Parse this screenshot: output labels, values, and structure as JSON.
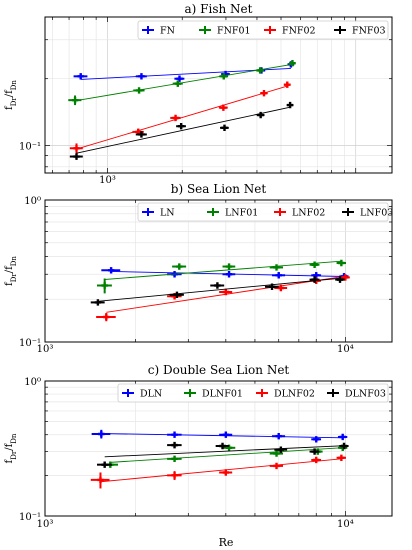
{
  "figure": {
    "shared_xlabel": "Re"
  },
  "chart_data": [
    {
      "type": "scatter",
      "title": "a) Fish Net",
      "xlabel": "",
      "ylabel": "f_Dr/f_Dn",
      "xscale": "log",
      "yscale": "log",
      "xlim": [
        560,
        14000
      ],
      "ylim": [
        0.075,
        0.38
      ],
      "x_tick_labels": [
        {
          "value": 1000,
          "label": "10³"
        }
      ],
      "y_tick_labels": [
        {
          "value": 0.1,
          "label": "10⁻¹"
        }
      ],
      "grid": true,
      "legend_position": "top",
      "series": [
        {
          "name": "FN",
          "color": "#0000ff",
          "fit": true,
          "x": [
            780,
            1370,
            1950,
            2990,
            4170,
            5480
          ],
          "y": [
            0.205,
            0.205,
            0.2,
            0.21,
            0.218,
            0.232
          ],
          "xerr": [
            50,
            70,
            90,
            120,
            150,
            170
          ],
          "yerr": [
            0.004,
            0.004,
            0.004,
            0.004,
            0.005,
            0.005
          ]
        },
        {
          "name": "FNF01",
          "color": "#008000",
          "fit": true,
          "x": [
            740,
            1340,
            1920,
            2940,
            4120,
            5560
          ],
          "y": [
            0.16,
            0.177,
            0.19,
            0.205,
            0.218,
            0.235
          ],
          "xerr": [
            45,
            70,
            90,
            120,
            150,
            170
          ],
          "yerr": [
            0.008,
            0.005,
            0.005,
            0.005,
            0.005,
            0.005
          ]
        },
        {
          "name": "FNF02",
          "color": "#ff0000",
          "fit": true,
          "x": [
            750,
            1330,
            1880,
            2930,
            4270,
            5300
          ],
          "y": [
            0.097,
            0.115,
            0.133,
            0.148,
            0.172,
            0.188
          ],
          "xerr": [
            45,
            70,
            90,
            120,
            150,
            170
          ],
          "yerr": [
            0.005,
            0.004,
            0.004,
            0.004,
            0.004,
            0.004
          ]
        },
        {
          "name": "FNF03",
          "color": "#000000",
          "fit": true,
          "x": [
            750,
            1370,
            1980,
            2960,
            4140,
            5440
          ],
          "y": [
            0.089,
            0.112,
            0.122,
            0.12,
            0.137,
            0.152
          ],
          "xerr": [
            45,
            70,
            90,
            120,
            150,
            170
          ],
          "yerr": [
            0.003,
            0.003,
            0.003,
            0.003,
            0.003,
            0.003
          ]
        }
      ]
    },
    {
      "type": "scatter",
      "title": "b) Sea Lion Net",
      "xlabel": "",
      "ylabel": "f_Dr/f_Dn",
      "xscale": "log",
      "yscale": "log",
      "xlim": [
        1000,
        14300
      ],
      "ylim": [
        0.1,
        1.0
      ],
      "x_tick_labels": [
        {
          "value": 1000,
          "label": "10³"
        },
        {
          "value": 10000,
          "label": "10⁴"
        }
      ],
      "y_tick_labels": [
        {
          "value": 0.1,
          "label": "10⁻¹"
        },
        {
          "value": 1.0,
          "label": "10⁰"
        }
      ],
      "grid": true,
      "legend_position": "top",
      "series": [
        {
          "name": "LN",
          "color": "#0000ff",
          "fit": true,
          "x": [
            1660,
            2700,
            4100,
            6000,
            8000,
            9900
          ],
          "y": [
            0.32,
            0.3,
            0.3,
            0.295,
            0.295,
            0.29
          ],
          "xerr": [
            120,
            150,
            200,
            300,
            300,
            350
          ],
          "yerr": [
            0.015,
            0.01,
            0.01,
            0.015,
            0.015,
            0.015
          ]
        },
        {
          "name": "LNF01",
          "color": "#008000",
          "fit": true,
          "x": [
            1580,
            2800,
            4100,
            5900,
            7900,
            9700
          ],
          "y": [
            0.25,
            0.34,
            0.34,
            0.335,
            0.35,
            0.36
          ],
          "xerr": [
            90,
            150,
            200,
            300,
            300,
            350
          ],
          "yerr": [
            0.03,
            0.015,
            0.01,
            0.01,
            0.01,
            0.01
          ]
        },
        {
          "name": "LNF02",
          "color": "#ff0000",
          "fit": true,
          "x": [
            1600,
            2700,
            4000,
            6100,
            8000,
            10000
          ],
          "y": [
            0.15,
            0.21,
            0.225,
            0.24,
            0.27,
            0.285
          ],
          "xerr": [
            120,
            150,
            200,
            300,
            300,
            350
          ],
          "yerr": [
            0.01,
            0.01,
            0.01,
            0.01,
            0.01,
            0.01
          ]
        },
        {
          "name": "LNF03",
          "color": "#000000",
          "fit": true,
          "x": [
            1500,
            2750,
            3750,
            5700,
            7900,
            9600
          ],
          "y": [
            0.19,
            0.215,
            0.25,
            0.245,
            0.275,
            0.275
          ],
          "xerr": [
            80,
            150,
            200,
            300,
            300,
            350
          ],
          "yerr": [
            0.005,
            0.008,
            0.008,
            0.008,
            0.008,
            0.008
          ]
        }
      ]
    },
    {
      "type": "scatter",
      "title": "c) Double Sea Lion Net",
      "xlabel": "Re",
      "ylabel": "f_Dr/f_Dn",
      "xscale": "log",
      "yscale": "log",
      "xlim": [
        1000,
        14300
      ],
      "ylim": [
        0.1,
        1.0
      ],
      "x_tick_labels": [
        {
          "value": 1000,
          "label": "10³"
        },
        {
          "value": 10000,
          "label": "10⁴"
        }
      ],
      "y_tick_labels": [
        {
          "value": 0.1,
          "label": "10⁻¹"
        },
        {
          "value": 1.0,
          "label": "10⁰"
        }
      ],
      "grid": true,
      "legend_position": "top",
      "series": [
        {
          "name": "DLN",
          "color": "#0000ff",
          "fit": true,
          "x": [
            1540,
            2700,
            4000,
            6000,
            8000,
            9800
          ],
          "y": [
            0.405,
            0.4,
            0.4,
            0.39,
            0.37,
            0.385
          ],
          "xerr": [
            110,
            150,
            200,
            300,
            300,
            350
          ],
          "yerr": [
            0.03,
            0.01,
            0.01,
            0.01,
            0.01,
            0.01
          ]
        },
        {
          "name": "DLNF01",
          "color": "#008000",
          "fit": true,
          "x": [
            1650,
            2700,
            4100,
            5900,
            8100,
            9800
          ],
          "y": [
            0.24,
            0.265,
            0.32,
            0.29,
            0.3,
            0.32
          ],
          "xerr": [
            100,
            150,
            200,
            300,
            300,
            350
          ],
          "yerr": [
            0.01,
            0.01,
            0.01,
            0.01,
            0.015,
            0.01
          ]
        },
        {
          "name": "DLNF02",
          "color": "#ff0000",
          "fit": true,
          "x": [
            1530,
            2700,
            4000,
            5900,
            8000,
            9700
          ],
          "y": [
            0.185,
            0.2,
            0.21,
            0.235,
            0.26,
            0.27
          ],
          "xerr": [
            110,
            150,
            200,
            300,
            300,
            350
          ],
          "yerr": [
            0.025,
            0.015,
            0.008,
            0.008,
            0.008,
            0.008
          ]
        },
        {
          "name": "DLNF03",
          "color": "#000000",
          "fit": true,
          "x": [
            1580,
            2700,
            3900,
            6100,
            7900,
            9900
          ],
          "y": [
            0.24,
            0.335,
            0.33,
            0.31,
            0.3,
            0.33
          ],
          "xerr": [
            90,
            150,
            200,
            300,
            300,
            350
          ],
          "yerr": [
            0.01,
            0.01,
            0.01,
            0.01,
            0.01,
            0.01
          ]
        }
      ]
    }
  ]
}
